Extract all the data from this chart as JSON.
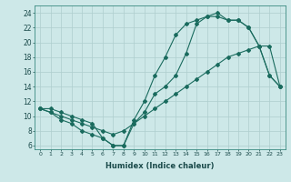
{
  "xlabel": "Humidex (Indice chaleur)",
  "bg_color": "#cde8e8",
  "line_color": "#1a6b5e",
  "grid_color": "#aecece",
  "xlim": [
    -0.5,
    23.5
  ],
  "ylim": [
    5.5,
    25
  ],
  "yticks": [
    6,
    8,
    10,
    12,
    14,
    16,
    18,
    20,
    22,
    24
  ],
  "xticks": [
    0,
    1,
    2,
    3,
    4,
    5,
    6,
    7,
    8,
    9,
    10,
    11,
    12,
    13,
    14,
    15,
    16,
    17,
    18,
    19,
    20,
    21,
    22,
    23
  ],
  "line1_x": [
    0,
    1,
    2,
    3,
    4,
    5,
    6,
    7,
    8,
    9,
    10,
    11,
    12,
    13,
    14,
    15,
    16,
    17,
    18,
    19,
    20,
    21,
    22,
    23
  ],
  "line1_y": [
    11,
    11,
    10.5,
    10,
    9.5,
    9,
    7,
    6,
    6,
    9.5,
    12,
    15.5,
    18,
    21,
    22.5,
    23,
    23.5,
    23.5,
    23,
    23,
    22,
    19.5,
    15.5,
    14
  ],
  "line2_x": [
    0,
    1,
    2,
    3,
    4,
    5,
    6,
    7,
    8,
    9,
    10,
    11,
    12,
    13,
    14,
    15,
    16,
    17,
    18,
    19,
    20,
    21,
    22,
    23
  ],
  "line2_y": [
    11,
    10.5,
    10,
    9.5,
    9,
    8.5,
    8,
    7.5,
    8,
    9,
    10,
    11,
    12,
    13,
    14,
    15,
    16,
    17,
    18,
    18.5,
    19,
    19.5,
    19.5,
    14
  ],
  "line3_x": [
    0,
    1,
    2,
    3,
    4,
    5,
    6,
    7,
    8,
    9,
    10,
    11,
    12,
    13,
    14,
    15,
    16,
    17,
    18,
    19,
    20,
    21,
    22,
    23
  ],
  "line3_y": [
    11,
    10.5,
    9.5,
    9,
    8,
    7.5,
    7,
    6,
    6,
    9,
    10.5,
    13,
    14,
    15.5,
    18.5,
    22.5,
    23.5,
    24,
    23,
    23,
    22,
    19.5,
    15.5,
    14
  ]
}
